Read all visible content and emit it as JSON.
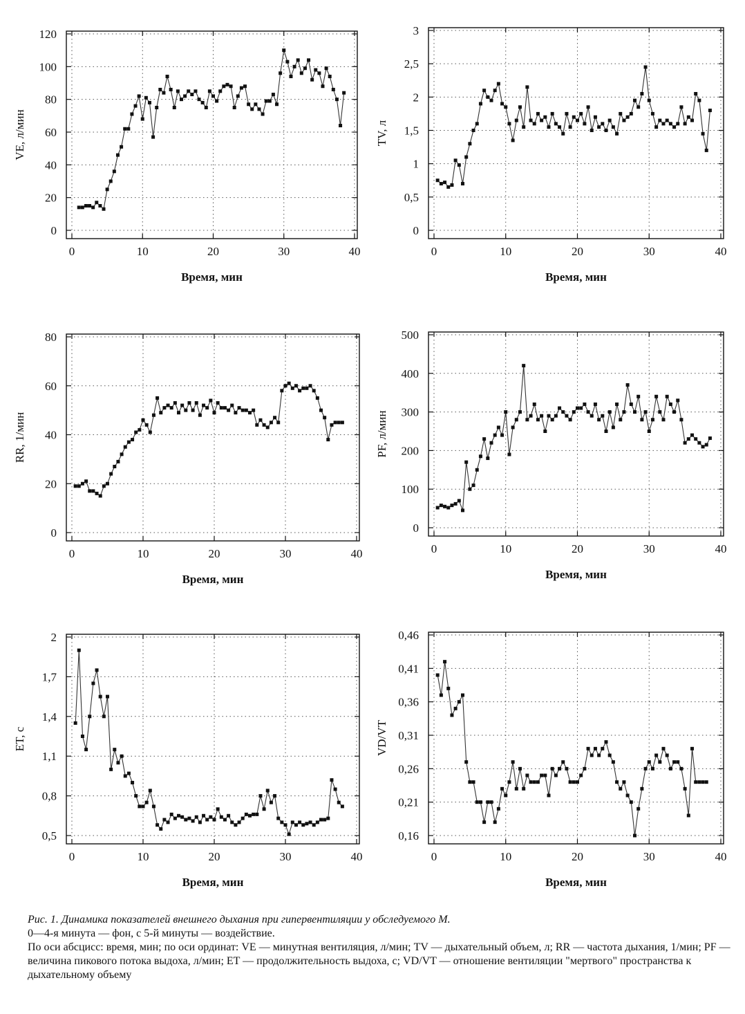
{
  "chart_data": [
    {
      "type": "line",
      "ylabel": "VE, л/мин",
      "xlabel": "Время, мин",
      "xlim": [
        0,
        40
      ],
      "ylim": [
        0,
        120
      ],
      "xticks": [
        "0",
        "10",
        "20",
        "30",
        "40"
      ],
      "yticks": [
        "0",
        "20",
        "40",
        "60",
        "80",
        "100",
        "120"
      ],
      "grid": true,
      "x": [
        1,
        1.5,
        2,
        2.5,
        3,
        3.5,
        4,
        4.5,
        5,
        5.5,
        6,
        6.5,
        7,
        7.5,
        8,
        8.5,
        9,
        9.5,
        10,
        10.5,
        11,
        11.5,
        12,
        12.5,
        13,
        13.5,
        14,
        14.5,
        15,
        15.5,
        16,
        16.5,
        17,
        17.5,
        18,
        18.5,
        19,
        19.5,
        20,
        20.5,
        21,
        21.5,
        22,
        22.5,
        23,
        23.5,
        24,
        24.5,
        25,
        25.5,
        26,
        26.5,
        27,
        27.5,
        28,
        28.5,
        29,
        29.5,
        30,
        30.5,
        31,
        31.5,
        32,
        32.5,
        33,
        33.5,
        34,
        34.5,
        35,
        35.5,
        36,
        36.5,
        37,
        37.5,
        38,
        38.5
      ],
      "y": [
        14,
        14,
        15,
        15,
        14,
        17,
        15,
        13,
        25,
        30,
        36,
        46,
        51,
        62,
        62,
        71,
        76,
        82,
        68,
        81,
        78,
        57,
        75,
        86,
        84,
        94,
        86,
        75,
        85,
        80,
        82,
        85,
        83,
        85,
        80,
        78,
        75,
        85,
        82,
        79,
        85,
        88,
        89,
        88,
        75,
        82,
        87,
        88,
        77,
        74,
        77,
        74,
        71,
        79,
        79,
        83,
        77,
        96,
        110,
        103,
        94,
        100,
        104,
        96,
        99,
        104,
        92,
        98,
        96,
        88,
        99,
        94,
        86,
        80,
        64,
        84
      ]
    },
    {
      "type": "line",
      "ylabel": "TV, л",
      "xlabel": "Время, мин",
      "xlim": [
        0,
        40
      ],
      "ylim": [
        0,
        3
      ],
      "xticks": [
        "0",
        "10",
        "20",
        "30",
        "40"
      ],
      "yticks": [
        "0",
        "0,5",
        "1",
        "1,5",
        "2",
        "2,5",
        "3"
      ],
      "grid": true,
      "x": [
        0.5,
        1,
        1.5,
        2,
        2.5,
        3,
        3.5,
        4,
        4.5,
        5,
        5.5,
        6,
        6.5,
        7,
        7.5,
        8,
        8.5,
        9,
        9.5,
        10,
        10.5,
        11,
        11.5,
        12,
        12.5,
        13,
        13.5,
        14,
        14.5,
        15,
        15.5,
        16,
        16.5,
        17,
        17.5,
        18,
        18.5,
        19,
        19.5,
        20,
        20.5,
        21,
        21.5,
        22,
        22.5,
        23,
        23.5,
        24,
        24.5,
        25,
        25.5,
        26,
        26.5,
        27,
        27.5,
        28,
        28.5,
        29,
        29.5,
        30,
        30.5,
        31,
        31.5,
        32,
        32.5,
        33,
        33.5,
        34,
        34.5,
        35,
        35.5,
        36,
        36.5,
        37,
        37.5,
        38,
        38.5
      ],
      "y": [
        0.75,
        0.7,
        0.72,
        0.65,
        0.68,
        1.05,
        0.98,
        0.7,
        1.1,
        1.3,
        1.5,
        1.6,
        1.9,
        2.1,
        2.0,
        1.95,
        2.1,
        2.2,
        1.9,
        1.85,
        1.6,
        1.35,
        1.65,
        1.85,
        1.55,
        2.15,
        1.65,
        1.6,
        1.75,
        1.65,
        1.7,
        1.55,
        1.75,
        1.6,
        1.55,
        1.45,
        1.75,
        1.55,
        1.7,
        1.65,
        1.75,
        1.6,
        1.85,
        1.5,
        1.7,
        1.55,
        1.6,
        1.5,
        1.65,
        1.55,
        1.45,
        1.75,
        1.65,
        1.7,
        1.75,
        1.95,
        1.85,
        2.05,
        2.45,
        1.95,
        1.75,
        1.55,
        1.65,
        1.6,
        1.65,
        1.6,
        1.55,
        1.6,
        1.85,
        1.6,
        1.7,
        1.65,
        2.05,
        1.95,
        1.45,
        1.2,
        1.8
      ]
    },
    {
      "type": "line",
      "ylabel": "RR, 1/мин",
      "xlabel": "Время, мин",
      "xlim": [
        0,
        40
      ],
      "ylim": [
        0,
        80
      ],
      "xticks": [
        "0",
        "10",
        "20",
        "30",
        "40"
      ],
      "yticks": [
        "0",
        "20",
        "40",
        "60",
        "80"
      ],
      "grid": true,
      "x": [
        0.5,
        1,
        1.5,
        2,
        2.5,
        3,
        3.5,
        4,
        4.5,
        5,
        5.5,
        6,
        6.5,
        7,
        7.5,
        8,
        8.5,
        9,
        9.5,
        10,
        10.5,
        11,
        11.5,
        12,
        12.5,
        13,
        13.5,
        14,
        14.5,
        15,
        15.5,
        16,
        16.5,
        17,
        17.5,
        18,
        18.5,
        19,
        19.5,
        20,
        20.5,
        21,
        21.5,
        22,
        22.5,
        23,
        23.5,
        24,
        24.5,
        25,
        25.5,
        26,
        26.5,
        27,
        27.5,
        28,
        28.5,
        29,
        29.5,
        30,
        30.5,
        31,
        31.5,
        32,
        32.5,
        33,
        33.5,
        34,
        34.5,
        35,
        35.5,
        36,
        36.5,
        37,
        37.5,
        38
      ],
      "y": [
        19,
        19,
        20,
        21,
        17,
        17,
        16,
        15,
        19,
        20,
        24,
        27,
        29,
        32,
        35,
        37,
        38,
        41,
        42,
        46,
        44,
        41,
        48,
        55,
        49,
        51,
        52,
        51,
        53,
        49,
        52,
        50,
        53,
        50,
        53,
        48,
        52,
        51,
        54,
        49,
        53,
        51,
        51,
        50,
        52,
        49,
        51,
        50,
        50,
        49,
        50,
        44,
        46,
        44,
        43,
        45,
        47,
        45,
        58,
        60,
        61,
        59,
        60,
        58,
        59,
        59,
        60,
        58,
        55,
        50,
        47,
        38,
        44,
        45,
        45,
        45
      ]
    },
    {
      "type": "line",
      "ylabel": "PF, л/мин",
      "xlabel": "Время, мин",
      "xlim": [
        0,
        40
      ],
      "ylim": [
        0,
        500
      ],
      "xticks": [
        "0",
        "10",
        "20",
        "30",
        "40"
      ],
      "yticks": [
        "0",
        "100",
        "200",
        "300",
        "400",
        "500"
      ],
      "grid": true,
      "x": [
        0.5,
        1,
        1.5,
        2,
        2.5,
        3,
        3.5,
        4,
        4.5,
        5,
        5.5,
        6,
        6.5,
        7,
        7.5,
        8,
        8.5,
        9,
        9.5,
        10,
        10.5,
        11,
        11.5,
        12,
        12.5,
        13,
        13.5,
        14,
        14.5,
        15,
        15.5,
        16,
        16.5,
        17,
        17.5,
        18,
        18.5,
        19,
        19.5,
        20,
        20.5,
        21,
        21.5,
        22,
        22.5,
        23,
        23.5,
        24,
        24.5,
        25,
        25.5,
        26,
        26.5,
        27,
        27.5,
        28,
        28.5,
        29,
        29.5,
        30,
        30.5,
        31,
        31.5,
        32,
        32.5,
        33,
        33.5,
        34,
        34.5,
        35,
        35.5,
        36,
        36.5,
        37,
        37.5,
        38,
        38.5
      ],
      "y": [
        52,
        58,
        55,
        52,
        58,
        62,
        70,
        45,
        170,
        100,
        110,
        150,
        185,
        230,
        180,
        220,
        240,
        260,
        240,
        300,
        190,
        260,
        280,
        300,
        420,
        280,
        290,
        320,
        280,
        290,
        250,
        290,
        280,
        290,
        310,
        300,
        290,
        280,
        300,
        310,
        310,
        320,
        300,
        290,
        320,
        280,
        290,
        250,
        300,
        260,
        320,
        280,
        300,
        370,
        320,
        300,
        340,
        280,
        300,
        250,
        280,
        340,
        300,
        280,
        340,
        320,
        300,
        330,
        280,
        220,
        230,
        240,
        230,
        220,
        210,
        215,
        232
      ]
    },
    {
      "type": "line",
      "ylabel": "ET, c",
      "xlabel": "Время, мин",
      "xlim": [
        0,
        40
      ],
      "ylim": [
        0.5,
        2
      ],
      "xticks": [
        "0",
        "10",
        "20",
        "30",
        "40"
      ],
      "yticks": [
        "0,5",
        "0,8",
        "1,1",
        "1,4",
        "1,7",
        "2"
      ],
      "grid": true,
      "x": [
        0.5,
        1,
        1.5,
        2,
        2.5,
        3,
        3.5,
        4,
        4.5,
        5,
        5.5,
        6,
        6.5,
        7,
        7.5,
        8,
        8.5,
        9,
        9.5,
        10,
        10.5,
        11,
        11.5,
        12,
        12.5,
        13,
        13.5,
        14,
        14.5,
        15,
        15.5,
        16,
        16.5,
        17,
        17.5,
        18,
        18.5,
        19,
        19.5,
        20,
        20.5,
        21,
        21.5,
        22,
        22.5,
        23,
        23.5,
        24,
        24.5,
        25,
        25.5,
        26,
        26.5,
        27,
        27.5,
        28,
        28.5,
        29,
        29.5,
        30,
        30.5,
        31,
        31.5,
        32,
        32.5,
        33,
        33.5,
        34,
        34.5,
        35,
        35.5,
        36,
        36.5,
        37,
        37.5,
        38
      ],
      "y": [
        1.35,
        1.9,
        1.25,
        1.15,
        1.4,
        1.65,
        1.75,
        1.55,
        1.4,
        1.55,
        1.0,
        1.15,
        1.05,
        1.1,
        0.95,
        0.97,
        0.9,
        0.8,
        0.72,
        0.72,
        0.75,
        0.84,
        0.72,
        0.58,
        0.55,
        0.62,
        0.6,
        0.66,
        0.63,
        0.65,
        0.64,
        0.62,
        0.63,
        0.61,
        0.64,
        0.6,
        0.65,
        0.62,
        0.64,
        0.62,
        0.7,
        0.64,
        0.62,
        0.65,
        0.6,
        0.58,
        0.6,
        0.63,
        0.66,
        0.65,
        0.66,
        0.66,
        0.8,
        0.7,
        0.84,
        0.75,
        0.8,
        0.63,
        0.6,
        0.58,
        0.51,
        0.6,
        0.58,
        0.6,
        0.58,
        0.59,
        0.6,
        0.58,
        0.6,
        0.62,
        0.62,
        0.63,
        0.92,
        0.85,
        0.75,
        0.72
      ]
    },
    {
      "type": "line",
      "ylabel": "VD/VT",
      "xlabel": "Время, мин",
      "xlim": [
        0,
        40
      ],
      "ylim": [
        0.16,
        0.46
      ],
      "xticks": [
        "0",
        "10",
        "20",
        "30",
        "40"
      ],
      "yticks": [
        "0,16",
        "0,21",
        "0,26",
        "0,31",
        "0,36",
        "0,41",
        "0,46"
      ],
      "grid": true,
      "x": [
        0.5,
        1,
        1.5,
        2,
        2.5,
        3,
        3.5,
        4,
        4.5,
        5,
        5.5,
        6,
        6.5,
        7,
        7.5,
        8,
        8.5,
        9,
        9.5,
        10,
        10.5,
        11,
        11.5,
        12,
        12.5,
        13,
        13.5,
        14,
        14.5,
        15,
        15.5,
        16,
        16.5,
        17,
        17.5,
        18,
        18.5,
        19,
        19.5,
        20,
        20.5,
        21,
        21.5,
        22,
        22.5,
        23,
        23.5,
        24,
        24.5,
        25,
        25.5,
        26,
        26.5,
        27,
        27.5,
        28,
        28.5,
        29,
        29.5,
        30,
        30.5,
        31,
        31.5,
        32,
        32.5,
        33,
        33.5,
        34,
        34.5,
        35,
        35.5,
        36,
        36.5,
        37,
        37.5,
        38
      ],
      "y": [
        0.4,
        0.37,
        0.42,
        0.38,
        0.34,
        0.35,
        0.36,
        0.37,
        0.27,
        0.24,
        0.24,
        0.21,
        0.21,
        0.18,
        0.21,
        0.21,
        0.18,
        0.2,
        0.23,
        0.22,
        0.24,
        0.27,
        0.23,
        0.26,
        0.23,
        0.25,
        0.24,
        0.24,
        0.24,
        0.25,
        0.25,
        0.22,
        0.26,
        0.25,
        0.26,
        0.27,
        0.26,
        0.24,
        0.24,
        0.24,
        0.25,
        0.26,
        0.29,
        0.28,
        0.29,
        0.28,
        0.29,
        0.3,
        0.28,
        0.27,
        0.24,
        0.23,
        0.24,
        0.22,
        0.21,
        0.16,
        0.2,
        0.23,
        0.26,
        0.27,
        0.26,
        0.28,
        0.27,
        0.29,
        0.28,
        0.26,
        0.27,
        0.27,
        0.26,
        0.23,
        0.19,
        0.29,
        0.24,
        0.24,
        0.24,
        0.24
      ]
    }
  ],
  "caption": {
    "title": "Рис. 1. Динамика показателей внешнего дыхания при гипервентиляции у обследуемого М.",
    "line1": "0—4-я минута — фон, с 5-й минуты — воздействие.",
    "line2": "По оси абсцисс: время, мин; по оси ординат: VE — минутная вентиляция, л/мин; TV — дыхательный объем, л; RR — частота дыхания, 1/мин; PF — величина пикового потока выдоха, л/мин; ET — продолжительность выдоха, с; VD/VT — отношение вентиляции \"мертвого\" пространства к дыхательному объему"
  }
}
